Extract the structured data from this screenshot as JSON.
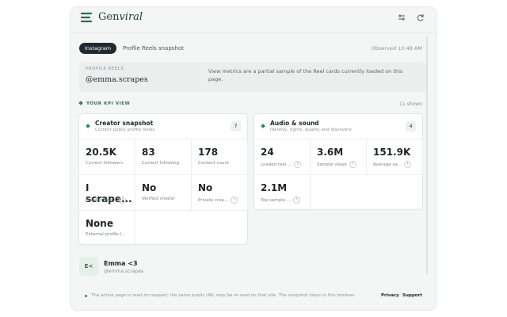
{
  "header": {
    "brand_main": "Gen",
    "brand_italic": "viral"
  },
  "toolbar": {
    "platform": "Instagram",
    "view": "Profile Reels snapshot",
    "observed": "Observed 10:48 AM"
  },
  "profile_box": {
    "label": "PROFILE REELS",
    "handle": "@emma.scrapes",
    "note": "View metrics are a partial sample of the Reel cards currently loaded on this page."
  },
  "kpi": {
    "title": "YOUR KPI VIEW",
    "count": "11 shown"
  },
  "help_icon": "?",
  "cards": [
    {
      "title": "Creator snapshot",
      "subtitle": "Current public profile totals",
      "badge": "7",
      "metrics": [
        {
          "value": "20.5K",
          "label": "Current followers",
          "help": false
        },
        {
          "value": "83",
          "label": "Current following",
          "help": false
        },
        {
          "value": "178",
          "label": "Content count",
          "help": false
        },
        {
          "value": "I scrape...",
          "label": "Creator biog...",
          "help": true
        },
        {
          "value": "No",
          "label": "Verified creator",
          "help": false
        },
        {
          "value": "No",
          "label": "Private crea...",
          "help": true
        },
        {
          "value": "None",
          "label": "External profile l...",
          "help": false
        }
      ]
    },
    {
      "title": "Audio & sound",
      "subtitle": "Identity, rights, quality and discovery",
      "badge": "4",
      "metrics": [
        {
          "value": "24",
          "label": "Loaded reel ...",
          "help": true
        },
        {
          "value": "3.6M",
          "label": "Sample views",
          "help": true
        },
        {
          "value": "151.9K",
          "label": "Average sa...",
          "help": true
        },
        {
          "value": "2.1M",
          "label": "Top sample ...",
          "help": true
        }
      ]
    }
  ],
  "profile": {
    "avatar": "E<",
    "name": "Emma <3",
    "handle": "@emma.scrapes"
  },
  "footer": {
    "note": "The active page is read on request; the same public URL may be re-read on that site. The snapshot stays in this browser.",
    "links": [
      "Privacy",
      "Support"
    ]
  }
}
